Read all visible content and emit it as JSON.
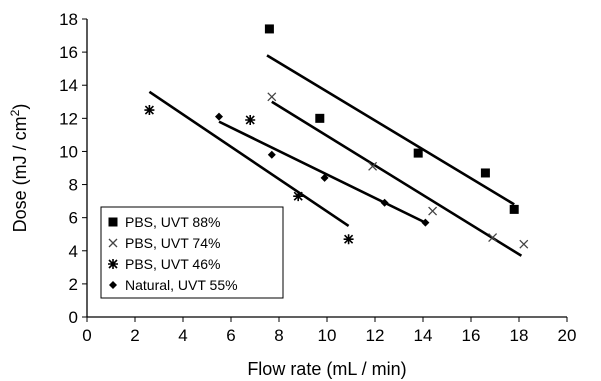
{
  "chart_data": {
    "type": "scatter",
    "title": "",
    "xlabel": "Flow rate (mL / min)",
    "ylabel": "Dose (mJ / cm²)",
    "ylabel_parts": {
      "pre": "Dose (mJ / cm",
      "sup": "2",
      "post": ")"
    },
    "xlim": [
      0,
      20
    ],
    "ylim": [
      0,
      18
    ],
    "x_ticks": [
      0,
      2,
      4,
      6,
      8,
      10,
      12,
      14,
      16,
      18,
      20
    ],
    "y_ticks": [
      0,
      2,
      4,
      6,
      8,
      10,
      12,
      14,
      16,
      18
    ],
    "grid": false,
    "legend_position": "bottom-left",
    "series": [
      {
        "name": "PBS, UVT 88%",
        "marker": "square",
        "points": [
          [
            7.6,
            17.4
          ],
          [
            9.7,
            12.0
          ],
          [
            13.8,
            9.9
          ],
          [
            16.6,
            8.7
          ],
          [
            17.8,
            6.5
          ]
        ],
        "trend": [
          [
            7.5,
            15.8
          ],
          [
            17.8,
            6.8
          ]
        ]
      },
      {
        "name": "PBS, UVT 74%",
        "marker": "x",
        "points": [
          [
            7.7,
            13.3
          ],
          [
            11.9,
            9.1
          ],
          [
            14.4,
            6.4
          ],
          [
            16.9,
            4.8
          ],
          [
            18.2,
            4.4
          ]
        ],
        "trend": [
          [
            7.7,
            13.0
          ],
          [
            18.1,
            3.7
          ]
        ]
      },
      {
        "name": "PBS, UVT 46%",
        "marker": "asterisk",
        "points": [
          [
            2.6,
            12.5
          ],
          [
            6.8,
            11.9
          ],
          [
            8.8,
            7.3
          ],
          [
            10.9,
            4.7
          ]
        ],
        "trend": [
          [
            2.6,
            13.6
          ],
          [
            10.9,
            5.5
          ]
        ]
      },
      {
        "name": "Natural, UVT 55%",
        "marker": "diamond",
        "points": [
          [
            5.5,
            12.1
          ],
          [
            7.7,
            9.8
          ],
          [
            9.9,
            8.4
          ],
          [
            12.4,
            6.9
          ],
          [
            14.1,
            5.7
          ]
        ],
        "trend": [
          [
            5.5,
            11.8
          ],
          [
            14.1,
            5.7
          ]
        ]
      }
    ]
  }
}
